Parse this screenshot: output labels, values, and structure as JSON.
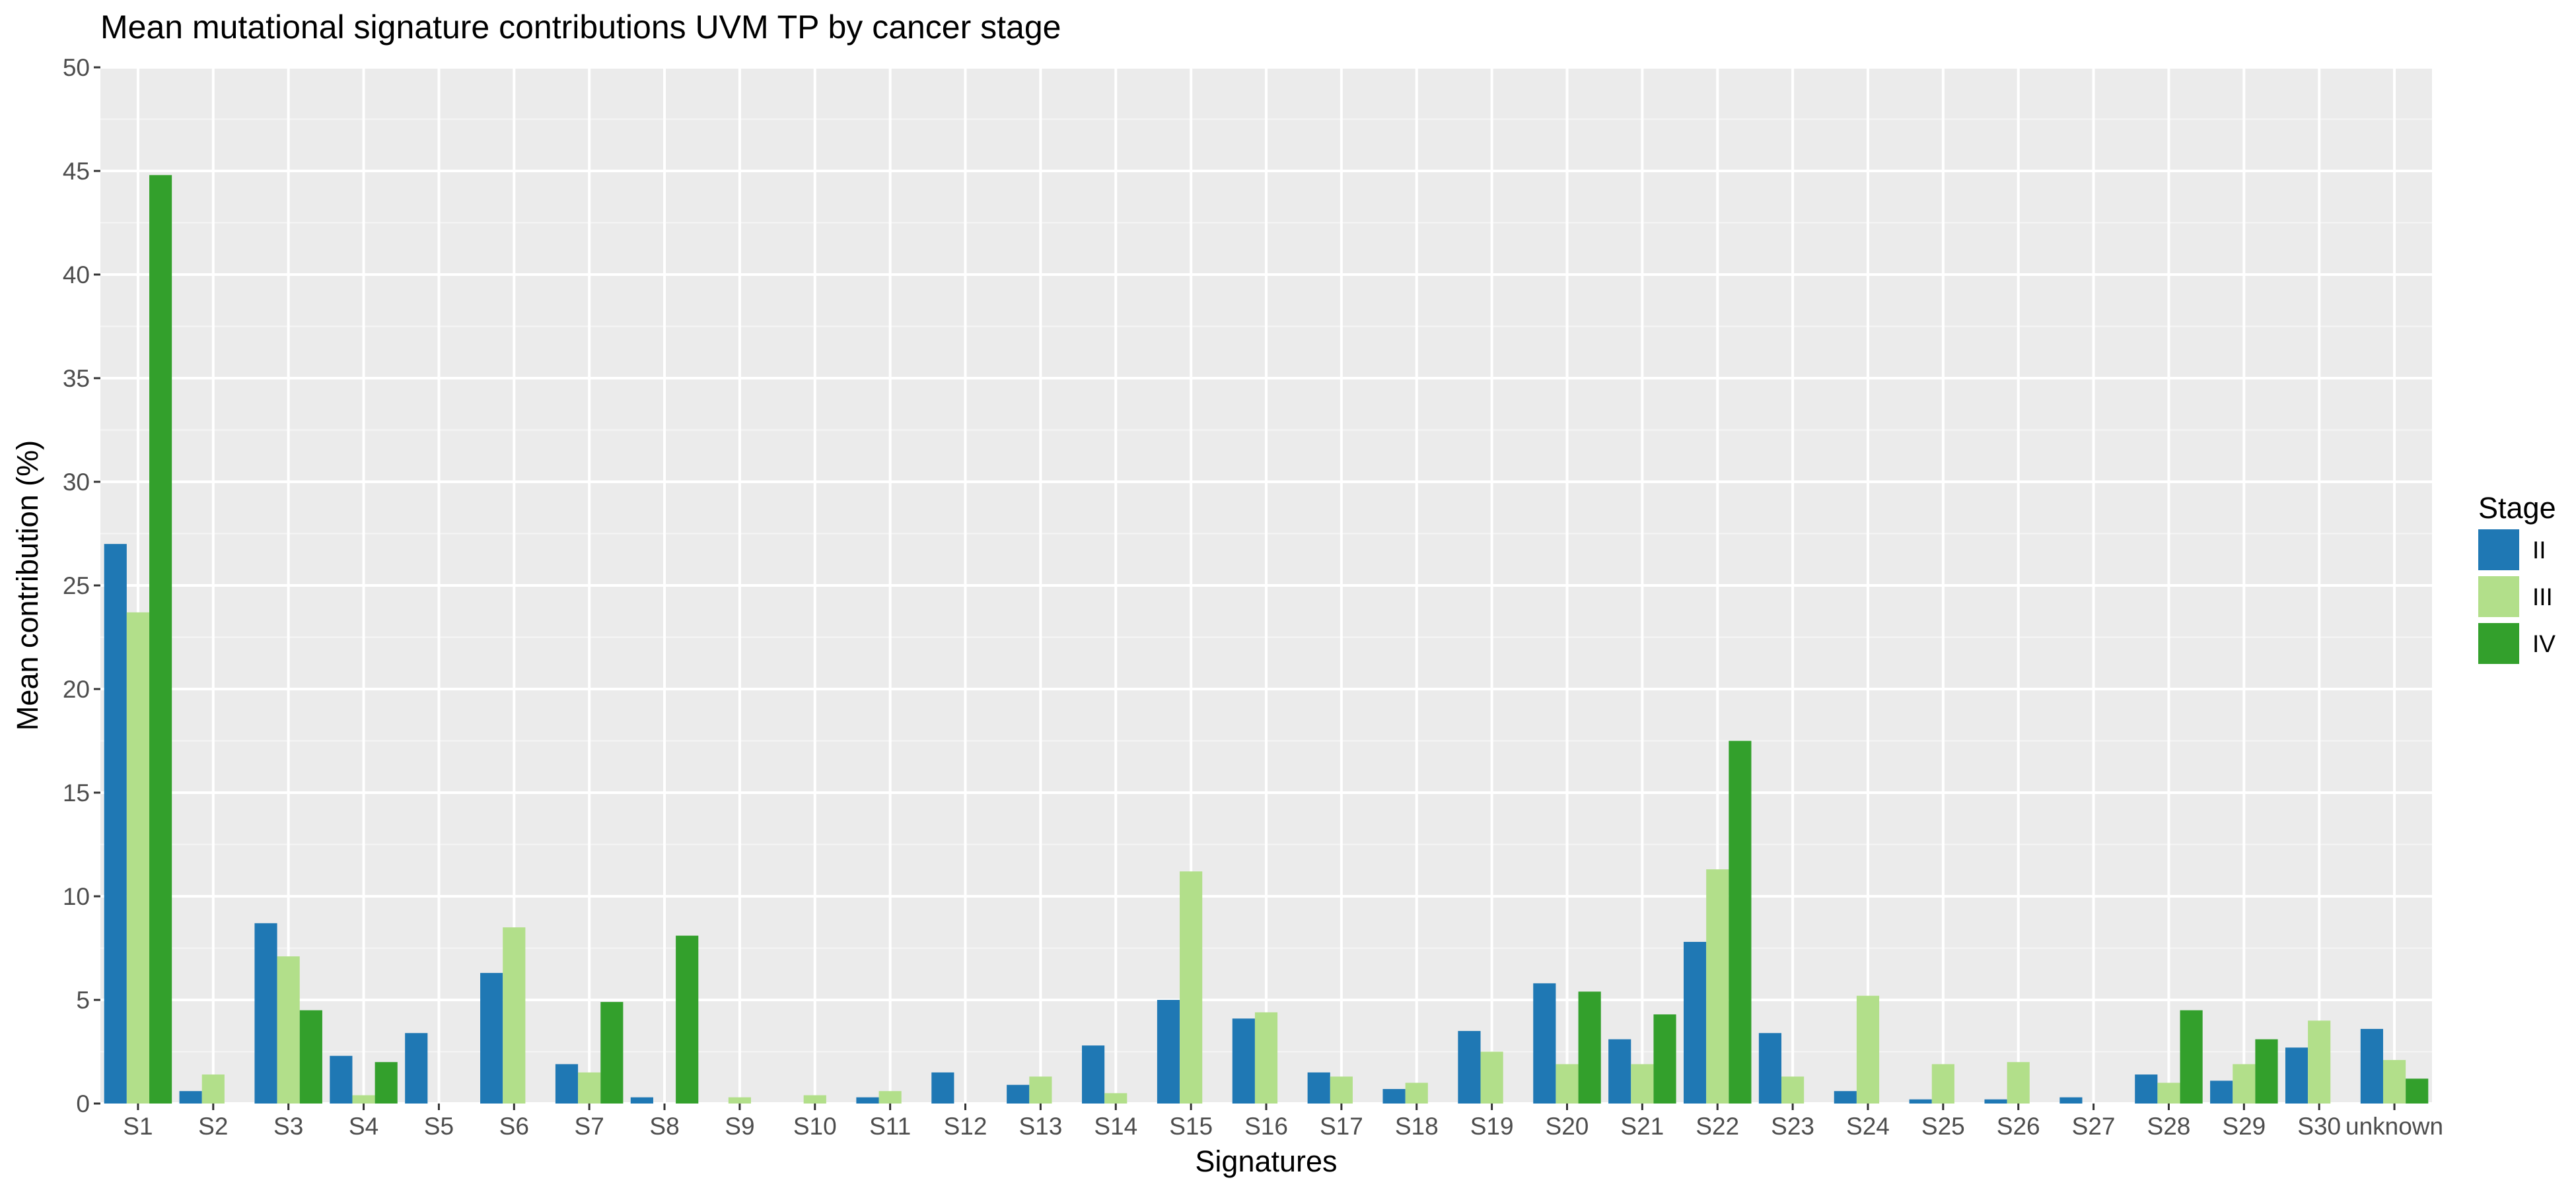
{
  "chart_data": {
    "type": "bar",
    "title": "Mean mutational signature contributions UVM TP by cancer stage",
    "xlabel": "Signatures",
    "ylabel": "Mean contribution (%)",
    "ylim": [
      0,
      50
    ],
    "yticks": [
      0,
      5,
      10,
      15,
      20,
      25,
      30,
      35,
      40,
      45,
      50
    ],
    "grid": true,
    "legend_placement": "right",
    "legend_title": "Stage",
    "categories": [
      "S1",
      "S2",
      "S3",
      "S4",
      "S5",
      "S6",
      "S7",
      "S8",
      "S9",
      "S10",
      "S11",
      "S12",
      "S13",
      "S14",
      "S15",
      "S16",
      "S17",
      "S18",
      "S19",
      "S20",
      "S21",
      "S22",
      "S23",
      "S24",
      "S25",
      "S26",
      "S27",
      "S28",
      "S29",
      "S30",
      "unknown"
    ],
    "series": [
      {
        "name": "II",
        "color": "#1f78b4",
        "values": [
          27.0,
          0.6,
          8.7,
          2.3,
          3.4,
          6.3,
          1.9,
          0.3,
          0,
          0,
          0.3,
          1.5,
          0.9,
          2.8,
          5.0,
          4.1,
          1.5,
          0.7,
          3.5,
          5.8,
          3.1,
          7.8,
          3.4,
          0.6,
          0.2,
          0.2,
          0.3,
          1.4,
          1.1,
          2.7,
          3.6
        ]
      },
      {
        "name": "III",
        "color": "#b2df8a",
        "values": [
          23.7,
          1.4,
          7.1,
          0.4,
          0,
          8.5,
          1.5,
          0,
          0.3,
          0.4,
          0.6,
          0,
          1.3,
          0.5,
          11.2,
          4.4,
          1.3,
          1.0,
          2.5,
          1.9,
          1.9,
          11.3,
          1.3,
          5.2,
          1.9,
          2.0,
          0,
          1.0,
          1.9,
          4.0,
          2.1
        ]
      },
      {
        "name": "IV",
        "color": "#33a02c",
        "values": [
          44.8,
          0,
          4.5,
          2.0,
          0,
          0,
          4.9,
          8.1,
          0,
          0,
          0,
          0,
          0,
          0,
          0,
          0,
          0,
          0,
          0,
          5.4,
          4.3,
          17.5,
          0,
          0,
          0,
          0,
          0,
          4.5,
          3.1,
          0,
          1.2
        ]
      }
    ]
  }
}
